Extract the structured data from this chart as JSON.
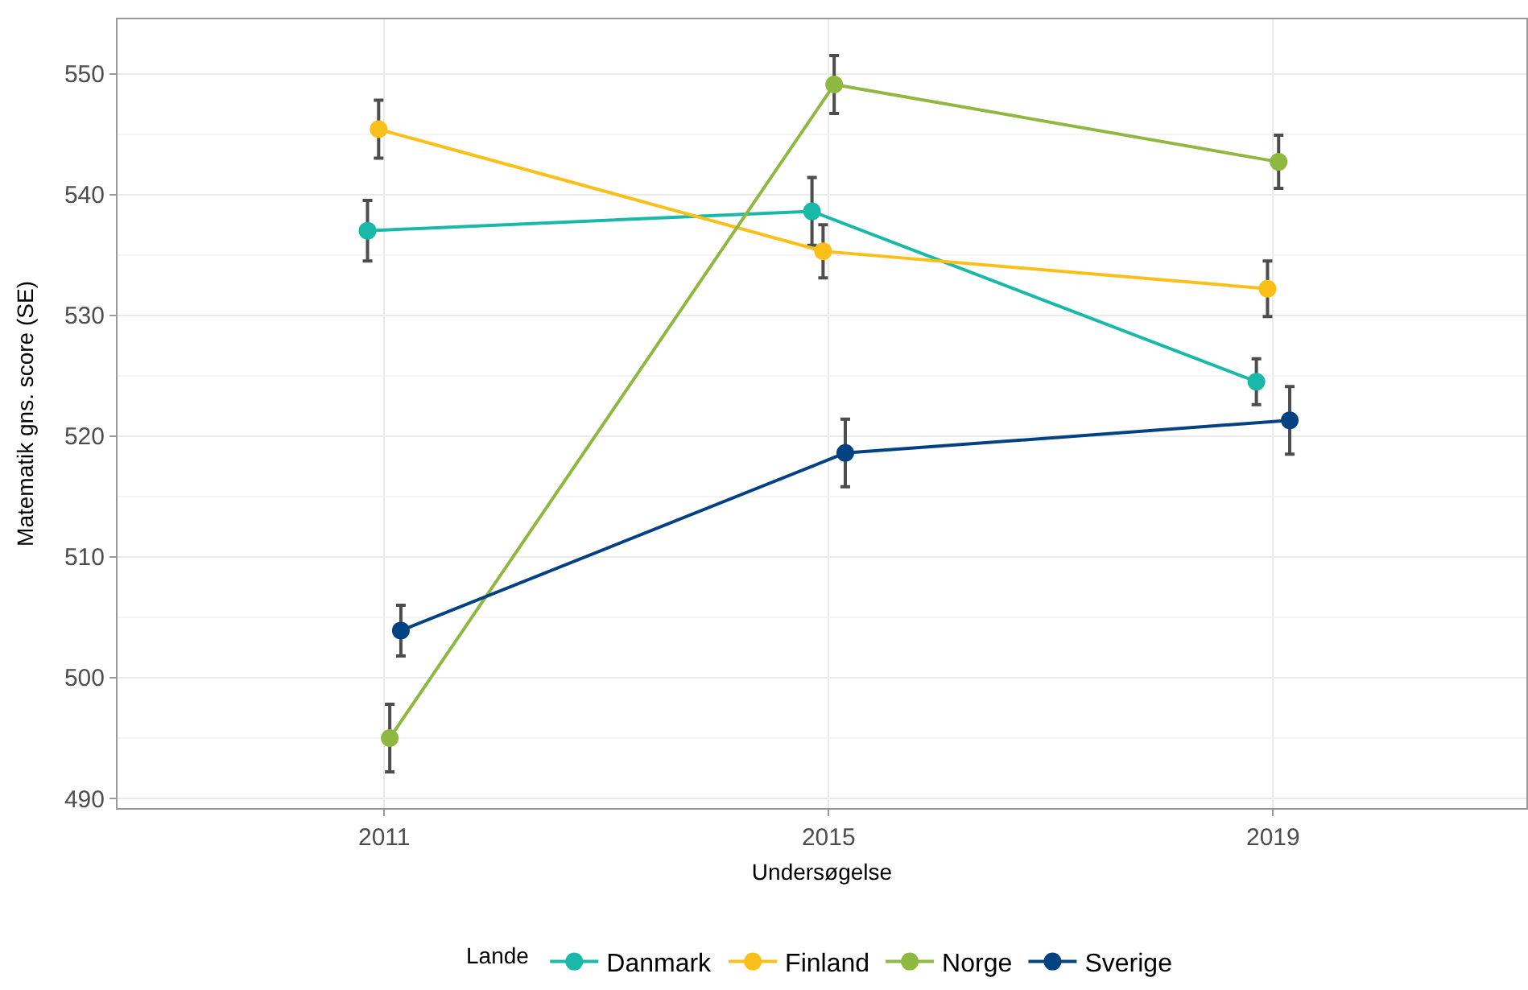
{
  "chart_data": {
    "type": "line",
    "xlabel": "Undersøgelse",
    "ylabel": "Matematik gns. score (SE)",
    "legend_title": "Lande",
    "categories": [
      "2011",
      "2015",
      "2019"
    ],
    "series": [
      {
        "name": "Danmark",
        "color": "#19b8a8",
        "values": [
          537.0,
          538.6,
          524.5
        ],
        "errors": [
          2.5,
          2.8,
          1.9
        ]
      },
      {
        "name": "Finland",
        "color": "#fbbf1a",
        "values": [
          545.4,
          535.3,
          532.2
        ],
        "errors": [
          2.4,
          2.2,
          2.3
        ]
      },
      {
        "name": "Norge",
        "color": "#8fb840",
        "values": [
          495.0,
          549.1,
          542.7
        ],
        "errors": [
          2.8,
          2.4,
          2.2
        ]
      },
      {
        "name": "Sverige",
        "color": "#034282",
        "values": [
          503.9,
          518.6,
          521.3
        ],
        "errors": [
          2.1,
          2.8,
          2.8
        ]
      }
    ],
    "ylim": [
      489.2,
      554.5
    ],
    "yticks": [
      490,
      500,
      510,
      520,
      530,
      540,
      550
    ],
    "grid": true,
    "legend": "bottom",
    "marker": "circle",
    "line_style": "solid"
  }
}
